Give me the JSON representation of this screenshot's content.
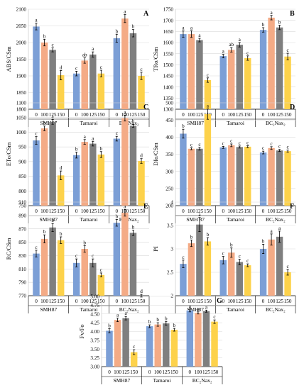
{
  "series_colors": [
    "#7c9fd6",
    "#f4ab86",
    "#7f7f7f",
    "#fdd24b"
  ],
  "chart_data": [
    {
      "type": "bar",
      "panel": "A",
      "ylabel": "ABS/CSm",
      "ylim": [
        1800,
        2100
      ],
      "yticks": [
        1800,
        1850,
        1900,
        1950,
        2000,
        2050,
        2100
      ],
      "groups": [
        "SMH87",
        "Tamaroi",
        "BC₂Nax₂"
      ],
      "categories": [
        "0",
        "100",
        "125",
        "150"
      ],
      "values": [
        [
          2048,
          2000,
          1978,
          1902
        ],
        [
          1907,
          1946,
          1964,
          1907
        ],
        [
          2013,
          2072,
          2028,
          1900
        ]
      ],
      "errors": [
        [
          10,
          10,
          6,
          14
        ],
        [
          7,
          8,
          8,
          10
        ],
        [
          12,
          12,
          11,
          11
        ]
      ],
      "letters": [
        [
          "a",
          "b",
          "c",
          "d"
        ],
        [
          "c",
          "ab",
          "a",
          "c"
        ],
        [
          "b",
          "a",
          "b",
          "c"
        ]
      ]
    },
    {
      "type": "bar",
      "panel": "B",
      "ylabel": "TRo/CSm",
      "ylim": [
        1300,
        1750
      ],
      "yticks": [
        1300,
        1350,
        1400,
        1450,
        1500,
        1550,
        1600,
        1650,
        1700,
        1750
      ],
      "groups": [
        "SMH87",
        "Tamaroi",
        "BC₂Nax₂"
      ],
      "categories": [
        "0",
        "100",
        "125",
        "150"
      ],
      "values": [
        [
          1638,
          1638,
          1611,
          1431
        ],
        [
          1539,
          1567,
          1590,
          1530
        ],
        [
          1657,
          1712,
          1668,
          1537
        ]
      ],
      "errors": [
        [
          14,
          15,
          8,
          10
        ],
        [
          8,
          10,
          10,
          10
        ],
        [
          10,
          10,
          10,
          15
        ]
      ],
      "letters": [
        [
          "a",
          "a",
          "a",
          "c"
        ],
        [
          "a",
          "ab",
          "a",
          "c"
        ],
        [
          "b",
          "a",
          "b",
          "c"
        ]
      ]
    },
    {
      "type": "bar",
      "panel": "C",
      "ylabel": "ETo/CSm",
      "ylim": [
        750,
        1100
      ],
      "yticks": [
        750,
        800,
        850,
        900,
        950,
        1000,
        1050,
        1100
      ],
      "groups": [
        "SMH 87",
        "Tamaroi",
        "BC₂Nax₂"
      ],
      "categories": [
        "0",
        "100",
        "125",
        "150"
      ],
      "values": [
        [
          972,
          1013,
          1035,
          853
        ],
        [
          922,
          967,
          961,
          924
        ],
        [
          978,
          1048,
          1022,
          902
        ]
      ],
      "errors": [
        [
          13,
          8,
          8,
          15
        ],
        [
          10,
          8,
          8,
          10
        ],
        [
          8,
          10,
          5,
          8
        ]
      ],
      "letters": [
        [
          "c",
          "b",
          "a",
          "d"
        ],
        [
          "b",
          "a",
          "a",
          "b"
        ],
        [
          "c",
          "a",
          "b",
          "d"
        ]
      ]
    },
    {
      "type": "bar",
      "panel": "D",
      "ylabel": "DIo/CSm",
      "ylim": [
        200,
        500
      ],
      "yticks": [
        200,
        250,
        300,
        350,
        400,
        450,
        500
      ],
      "groups": [
        "SMH 87",
        "Tamaroi",
        "BC₂Nax₂"
      ],
      "categories": [
        "0",
        "100",
        "125",
        "150"
      ],
      "values": [
        [
          410,
          366,
          366,
          467
        ],
        [
          370,
          376,
          371,
          372
        ],
        [
          355,
          368,
          361,
          359
        ]
      ],
      "errors": [
        [
          13,
          3,
          4,
          15
        ],
        [
          3,
          4,
          3,
          3
        ],
        [
          4,
          4,
          3,
          3
        ]
      ],
      "letters": [
        [
          "b",
          "c",
          "c",
          "a"
        ],
        [
          "c",
          "c",
          "c",
          "c"
        ],
        [
          "c",
          "c",
          "c",
          "c"
        ]
      ]
    },
    {
      "type": "bar",
      "panel": "E",
      "ylabel": "RC/CSm",
      "ylim": [
        770,
        910
      ],
      "yticks": [
        770,
        790,
        810,
        830,
        850,
        870,
        890,
        910
      ],
      "groups": [
        "SMH87",
        "Tamaroi",
        "BC₂Nax₂"
      ],
      "categories": [
        "0",
        "100",
        "125",
        "150"
      ],
      "values": [
        [
          833,
          855,
          872,
          853
        ],
        [
          819,
          840,
          819,
          801
        ],
        [
          879,
          894,
          864,
          770
        ]
      ],
      "errors": [
        [
          5,
          6,
          6,
          5
        ],
        [
          6,
          5,
          6,
          3
        ],
        [
          5,
          5,
          4,
          2
        ]
      ],
      "letters": [
        [
          "c",
          "b",
          "b",
          "b"
        ],
        [
          "c",
          "b",
          "c",
          "c"
        ],
        [
          "b",
          "a",
          "b",
          "d"
        ]
      ]
    },
    {
      "type": "bar",
      "panel": "F",
      "ylabel": "PI",
      "ylim": [
        2.0,
        4.0
      ],
      "yticks": [
        2.0,
        2.5,
        3.0,
        3.5,
        4.0
      ],
      "groups": [
        "SMH87",
        "Tamaroi",
        "BC₂Nax₂"
      ],
      "categories": [
        "0",
        "100",
        "125",
        "150"
      ],
      "values": [
        [
          2.68,
          3.12,
          3.52,
          3.16
        ],
        [
          2.76,
          2.92,
          2.72,
          2.65
        ],
        [
          3.0,
          3.2,
          3.26,
          2.5
        ]
      ],
      "errors": [
        [
          0.08,
          0.07,
          0.15,
          0.08
        ],
        [
          0.08,
          0.1,
          0.06,
          0.03
        ],
        [
          0.1,
          0.12,
          0.12,
          0.06
        ]
      ],
      "letters": [
        [
          "c",
          "b",
          "a",
          "b"
        ],
        [
          "c",
          "b",
          "c",
          "c"
        ],
        [
          "b",
          "a",
          "a",
          "c"
        ]
      ]
    },
    {
      "type": "bar",
      "panel": "G",
      "ylabel": "Fv/Fo",
      "ylim": [
        3.0,
        5.0
      ],
      "yticks": [
        3.0,
        3.25,
        3.5,
        3.75,
        4.0,
        4.25,
        4.5,
        4.75,
        5.0
      ],
      "ytick_labels": [
        "3.00",
        "3.25",
        "3.50",
        "3.75",
        "4.00",
        "4.25",
        "4.50",
        "4.75",
        "5.00"
      ],
      "groups": [
        "SMH87",
        "Tamaroi",
        "BC₂Nax₂"
      ],
      "categories": [
        "0",
        "100",
        "125",
        "150"
      ],
      "values": [
        [
          4.02,
          4.33,
          4.38,
          3.41
        ],
        [
          4.15,
          4.2,
          4.23,
          4.05
        ],
        [
          4.6,
          4.53,
          4.58,
          4.28
        ]
      ],
      "errors": [
        [
          0.06,
          0.05,
          0.05,
          0.07
        ],
        [
          0.04,
          0.05,
          0.05,
          0.04
        ],
        [
          0.04,
          0.03,
          0.03,
          0.05
        ]
      ],
      "letters": [
        [
          "b",
          "a",
          "a",
          "c"
        ],
        [
          "b",
          "b",
          "b",
          "b"
        ],
        [
          "a",
          "a",
          "a",
          "c"
        ]
      ]
    }
  ]
}
